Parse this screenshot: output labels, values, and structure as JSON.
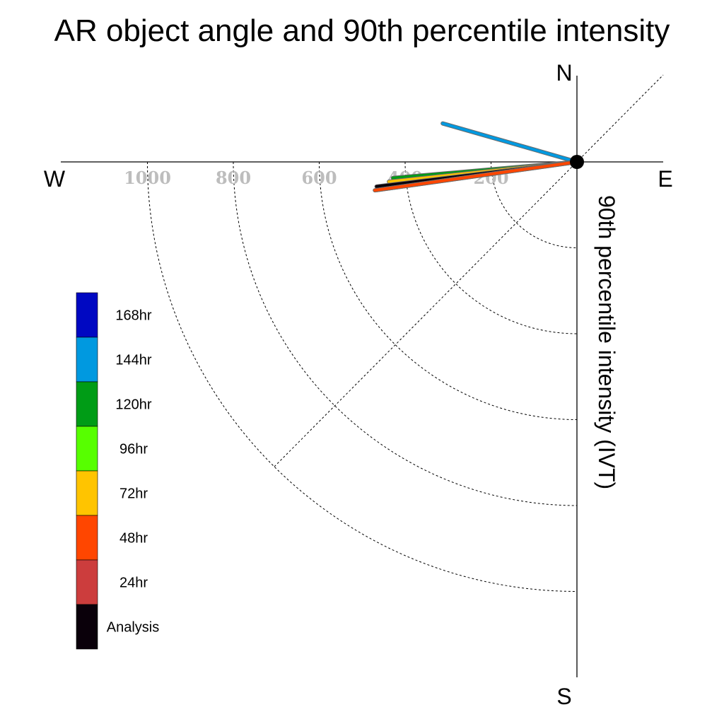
{
  "chart_data": {
    "type": "polar-vector",
    "title": "AR object angle and 90th percentile intensity",
    "ylabel": "90th percentile intensity (IVT)",
    "compass": {
      "north": "N",
      "south": "S",
      "east": "E",
      "west": "W"
    },
    "rings": [
      {
        "value": 200,
        "label": "200"
      },
      {
        "value": 400,
        "label": "400"
      },
      {
        "value": 600,
        "label": "600"
      },
      {
        "value": 800,
        "label": "800"
      },
      {
        "value": 1000,
        "label": "1000"
      }
    ],
    "radial_max": 1200,
    "series": [
      {
        "name": "Analysis",
        "color": "#0a000a",
        "angle_deg": 187,
        "intensity": 470
      },
      {
        "name": "24hr",
        "color": "#cc3d3d",
        "angle_deg": 188,
        "intensity": 470
      },
      {
        "name": "48hr",
        "color": "#ff4600",
        "angle_deg": 188,
        "intensity": 475
      },
      {
        "name": "72hr",
        "color": "#ffc400",
        "angle_deg": 186,
        "intensity": 440
      },
      {
        "name": "96hr",
        "color": "#57ff00",
        "angle_deg": 186,
        "intensity": 430
      },
      {
        "name": "120hr",
        "color": "#009c16",
        "angle_deg": 185,
        "intensity": 430
      },
      {
        "name": "144hr",
        "color": "#0099e0",
        "angle_deg": 164,
        "intensity": 325
      }
    ],
    "legend": [
      {
        "label": "168hr",
        "color": "#0008c2"
      },
      {
        "label": "144hr",
        "color": "#0099e0"
      },
      {
        "label": "120hr",
        "color": "#009c16"
      },
      {
        "label": "96hr",
        "color": "#57ff00"
      },
      {
        "label": "72hr",
        "color": "#ffc400"
      },
      {
        "label": "48hr",
        "color": "#ff4600"
      },
      {
        "label": "24hr",
        "color": "#cc3d3d"
      },
      {
        "label": "Analysis",
        "color": "#0a000a"
      }
    ]
  }
}
